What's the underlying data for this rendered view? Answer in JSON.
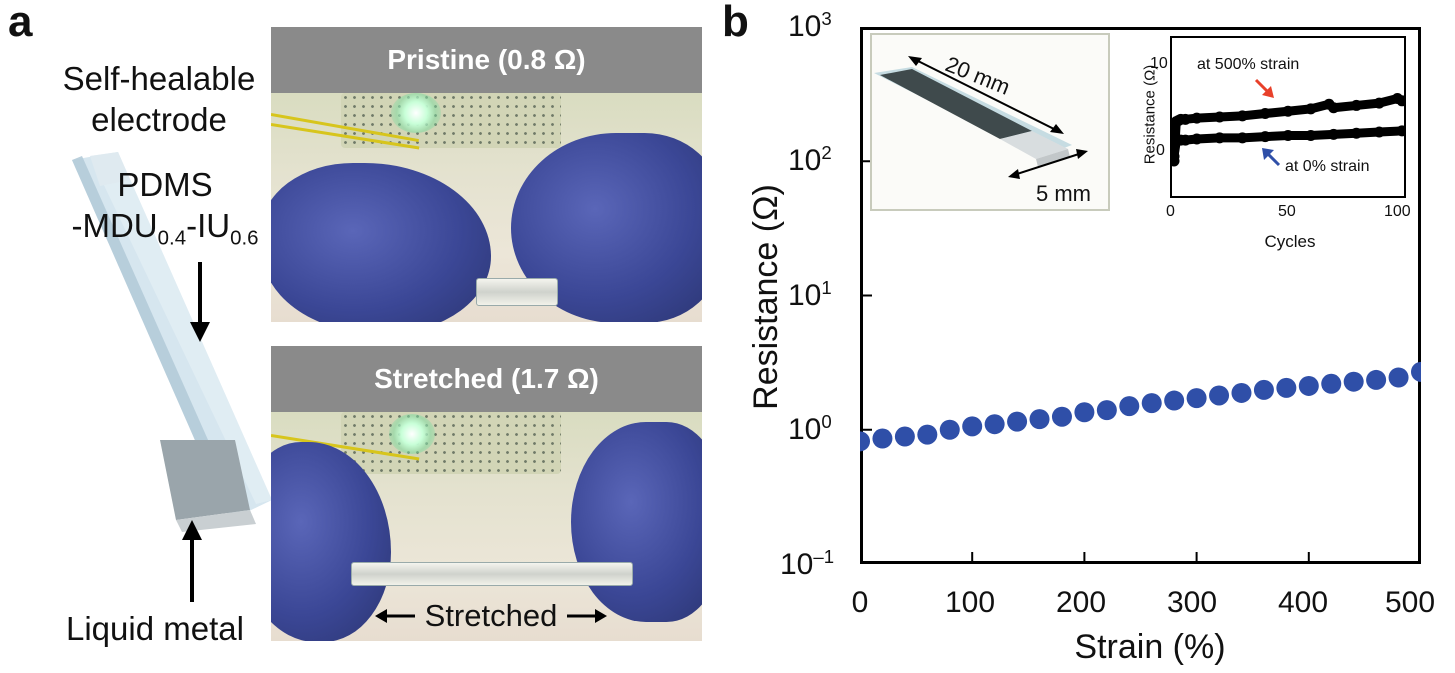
{
  "panel_a": {
    "letter": "a",
    "label_electrode": [
      "Self-healable",
      "electrode"
    ],
    "label_material_line1": "PDMS",
    "label_material_prefix": "-MDU",
    "label_material_sub1": "0.4",
    "label_material_mid": "-IU",
    "label_material_sub2": "0.6",
    "label_liquid_metal": "Liquid metal",
    "photo_top_title": "Pristine (0.8 Ω)",
    "photo_bottom_title": "Stretched (1.7 Ω)",
    "stretched_caption": "Stretched"
  },
  "panel_b": {
    "letter": "b",
    "inset_image_labels": {
      "length": "20 mm",
      "width": "5 mm"
    }
  },
  "chart_data": [
    {
      "type": "scatter",
      "xlabel": "Strain (%)",
      "ylabel": "Resistance (Ω)",
      "xlim": [
        0,
        500
      ],
      "ylim": [
        0.1,
        1000
      ],
      "y_scale": "log",
      "x_ticks": [
        "0",
        "100",
        "200",
        "300",
        "400",
        "500"
      ],
      "y_ticks": [
        {
          "base": "10",
          "exp": "–1",
          "value": 0.1
        },
        {
          "base": "10",
          "exp": "0",
          "value": 1
        },
        {
          "base": "10",
          "exp": "1",
          "value": 10
        },
        {
          "base": "10",
          "exp": "2",
          "value": 100
        },
        {
          "base": "10",
          "exp": "3",
          "value": 1000
        }
      ],
      "marker_color": "#2f4fa8",
      "x": [
        0,
        20,
        40,
        60,
        80,
        100,
        120,
        140,
        160,
        180,
        200,
        220,
        240,
        260,
        280,
        300,
        320,
        340,
        360,
        380,
        400,
        420,
        440,
        460,
        480,
        500
      ],
      "y": [
        0.82,
        0.86,
        0.89,
        0.92,
        1.0,
        1.06,
        1.1,
        1.15,
        1.2,
        1.25,
        1.35,
        1.4,
        1.5,
        1.58,
        1.65,
        1.72,
        1.8,
        1.88,
        1.98,
        2.05,
        2.12,
        2.2,
        2.28,
        2.35,
        2.45,
        2.7
      ]
    },
    {
      "type": "scatter",
      "xlabel": "Cycles",
      "ylabel": "Resistance (Ω)",
      "xlim": [
        0,
        100
      ],
      "ylim": [
        -2,
        12
      ],
      "x_ticks": [
        "0",
        "50",
        "100"
      ],
      "y_ticks": [
        "0",
        "10"
      ],
      "marker_color": "#000000",
      "annotations": [
        {
          "text": "at 500% strain",
          "arrow_color": "#e8402a"
        },
        {
          "text": "at 0% strain",
          "arrow_color": "#2f4fa8"
        }
      ],
      "series": [
        {
          "x": [
            0,
            1,
            2,
            3,
            5,
            10,
            20,
            30,
            40,
            50,
            60,
            68,
            70,
            80,
            90,
            98,
            100
          ],
          "y": [
            1.2,
            4.6,
            4.7,
            4.8,
            4.8,
            4.9,
            5.0,
            5.1,
            5.3,
            5.5,
            5.7,
            6.1,
            5.8,
            6.0,
            6.2,
            6.6,
            6.4
          ]
        },
        {
          "x": [
            0,
            1,
            2,
            3,
            5,
            10,
            20,
            30,
            40,
            50,
            60,
            70,
            80,
            90,
            100
          ],
          "y": [
            1.6,
            2.9,
            3.0,
            3.0,
            3.0,
            3.1,
            3.2,
            3.2,
            3.3,
            3.4,
            3.4,
            3.5,
            3.6,
            3.7,
            3.8
          ]
        }
      ]
    }
  ]
}
